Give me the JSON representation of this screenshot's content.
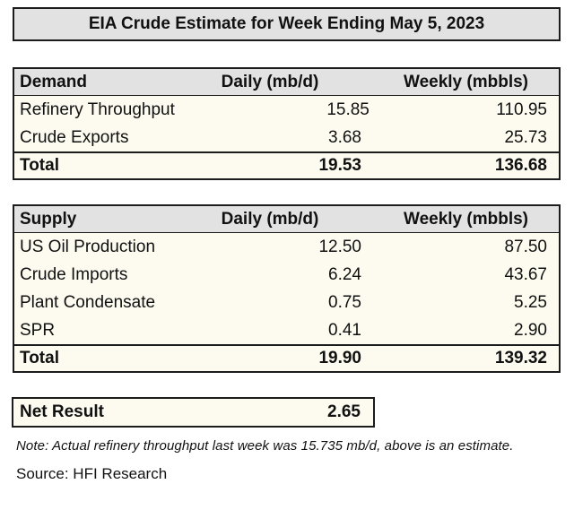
{
  "title": "EIA Crude Estimate for Week Ending May 5, 2023",
  "demand_table": {
    "columns": [
      "Demand",
      "Daily (mb/d)",
      "Weekly (mbbls)"
    ],
    "rows": [
      {
        "label": "Refinery Throughput",
        "daily": "15.85",
        "weekly": "110.95"
      },
      {
        "label": "Crude Exports",
        "daily": "3.68",
        "weekly": "25.73"
      }
    ],
    "total": {
      "label": "Total",
      "daily": "19.53",
      "weekly": "136.68"
    }
  },
  "supply_table": {
    "columns": [
      "Supply",
      "Daily (mb/d)",
      "Weekly (mbbls)"
    ],
    "rows": [
      {
        "label": "US Oil Production",
        "daily": "12.50",
        "weekly": "87.50"
      },
      {
        "label": "Crude Imports",
        "daily": "6.24",
        "weekly": "43.67"
      },
      {
        "label": "Plant Condensate",
        "daily": "0.75",
        "weekly": "5.25"
      },
      {
        "label": "SPR",
        "daily": "0.41",
        "weekly": "2.90"
      }
    ],
    "total": {
      "label": "Total",
      "daily": "19.90",
      "weekly": "139.32"
    }
  },
  "net_result": {
    "label": "Net Result",
    "value": "2.65"
  },
  "note": "Note: Actual refinery throughput last week was 15.735 mb/d, above is an estimate.",
  "source": "Source: HFI Research",
  "colors": {
    "border": "#1c1c1c",
    "header_bg": "#e2e2e2",
    "body_bg": "#fdfbf0",
    "page_bg": "#ffffff"
  }
}
